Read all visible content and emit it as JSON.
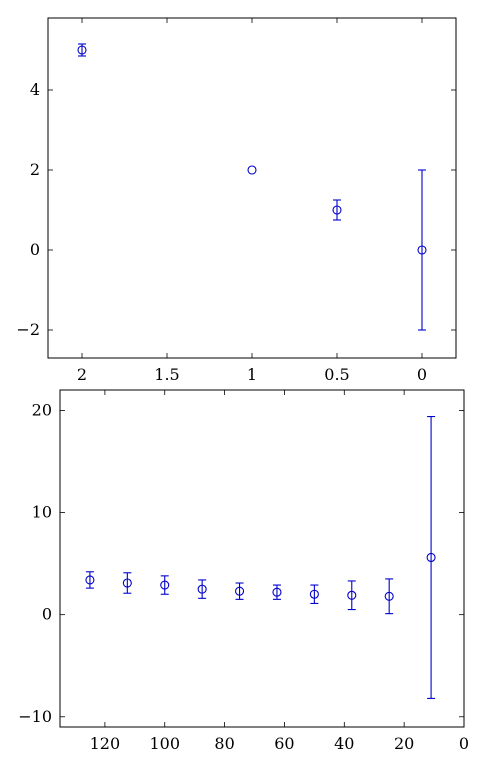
{
  "chart_data": [
    {
      "type": "scatter",
      "title": "",
      "xlabel": "",
      "ylabel": "",
      "x_reversed": true,
      "xlim": [
        2.2,
        -0.2
      ],
      "ylim": [
        -2.7,
        5.8
      ],
      "x_ticks": [
        2,
        1.5,
        1,
        0.5,
        0
      ],
      "x_tick_labels": [
        "2",
        "1.5",
        "1",
        "0.5",
        "0"
      ],
      "y_ticks": [
        -2,
        0,
        2,
        4
      ],
      "y_tick_labels": [
        "−2",
        "0",
        "2",
        "4"
      ],
      "grid": false,
      "series": [
        {
          "color": "#0000cc",
          "marker": "circle",
          "x": [
            2,
            1,
            0.5,
            0
          ],
          "y": [
            5,
            2,
            1,
            0
          ],
          "yerr": [
            0.15,
            0,
            0.25,
            2
          ]
        }
      ]
    },
    {
      "type": "scatter",
      "title": "",
      "xlabel": "",
      "ylabel": "",
      "x_reversed": true,
      "xlim": [
        135,
        0
      ],
      "ylim": [
        -11,
        22
      ],
      "x_ticks": [
        120,
        100,
        80,
        60,
        40,
        20,
        0
      ],
      "x_tick_labels": [
        "120",
        "100",
        "80",
        "60",
        "40",
        "20",
        "0"
      ],
      "y_ticks": [
        -10,
        0,
        10,
        20
      ],
      "y_tick_labels": [
        "−10",
        "0",
        "10",
        "20"
      ],
      "grid": false,
      "series": [
        {
          "color": "#0000cc",
          "marker": "circle",
          "x": [
            125,
            112.5,
            100,
            87.5,
            75,
            62.5,
            50,
            37.5,
            25,
            11
          ],
          "y": [
            3.4,
            3.1,
            2.9,
            2.5,
            2.3,
            2.2,
            2.0,
            1.9,
            1.8,
            5.6
          ],
          "yerr": [
            0.8,
            1.0,
            0.9,
            0.9,
            0.8,
            0.7,
            0.9,
            1.4,
            1.7,
            13.8
          ]
        }
      ]
    }
  ]
}
